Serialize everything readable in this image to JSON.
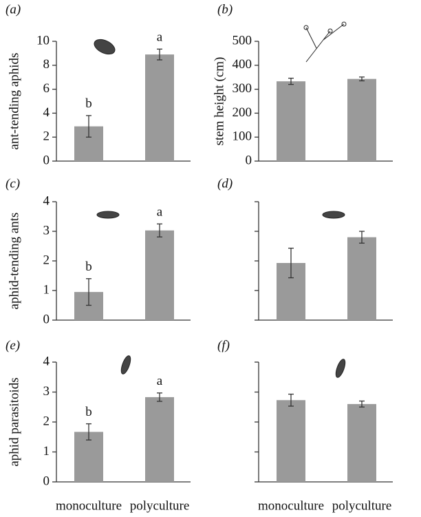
{
  "chart_data": [
    {
      "type": "bar",
      "panel_label": "(a)",
      "ylabel": "ant-tending aphids",
      "categories": [
        null,
        null
      ],
      "values": [
        2.9,
        8.9
      ],
      "errors": [
        0.9,
        0.45
      ],
      "annotations": [
        "b",
        "a"
      ],
      "color": "#9a9a9a",
      "ylim": [
        0,
        10
      ],
      "yticks": [
        0,
        2,
        4,
        6,
        8,
        10
      ],
      "show_tick_labels": true
    },
    {
      "type": "bar",
      "panel_label": "(b)",
      "ylabel": "stem height (cm)",
      "categories": [
        null,
        null
      ],
      "values": [
        333,
        343
      ],
      "errors": [
        13,
        8
      ],
      "color": "#9a9a9a",
      "ylim": [
        0,
        500
      ],
      "yticks": [
        0,
        100,
        200,
        300,
        400,
        500
      ],
      "show_tick_labels": true
    },
    {
      "type": "bar",
      "panel_label": "(c)",
      "ylabel": "aphid-tending ants",
      "categories": [
        null,
        null
      ],
      "values": [
        0.95,
        3.03
      ],
      "errors": [
        0.45,
        0.22
      ],
      "annotations": [
        "b",
        "a"
      ],
      "color": "#9a9a9a",
      "ylim": [
        0,
        4
      ],
      "yticks": [
        0,
        1,
        2,
        3,
        4
      ],
      "show_tick_labels": true
    },
    {
      "type": "bar",
      "panel_label": "(d)",
      "categories": [
        null,
        null
      ],
      "values": [
        1.93,
        2.8
      ],
      "errors": [
        0.5,
        0.2
      ],
      "color": "#9a9a9a",
      "ylim": [
        0,
        4
      ],
      "yticks": [
        0,
        1,
        2,
        3,
        4
      ],
      "show_tick_labels": false
    },
    {
      "type": "bar",
      "panel_label": "(e)",
      "ylabel": "aphid parasitoids",
      "categories": [
        "monoculture",
        "polyculture"
      ],
      "values": [
        1.67,
        2.83
      ],
      "errors": [
        0.27,
        0.14
      ],
      "annotations": [
        "b",
        "a"
      ],
      "color": "#9a9a9a",
      "ylim": [
        0,
        4
      ],
      "yticks": [
        0,
        1,
        2,
        3,
        4
      ],
      "show_tick_labels": true
    },
    {
      "type": "bar",
      "panel_label": "(f)",
      "categories": [
        "monoculture",
        "polyculture"
      ],
      "values": [
        2.73,
        2.6
      ],
      "errors": [
        0.2,
        0.1
      ],
      "color": "#9a9a9a",
      "ylim": [
        0,
        4
      ],
      "yticks": [
        0,
        1,
        2,
        3,
        4
      ],
      "show_tick_labels": false
    }
  ]
}
